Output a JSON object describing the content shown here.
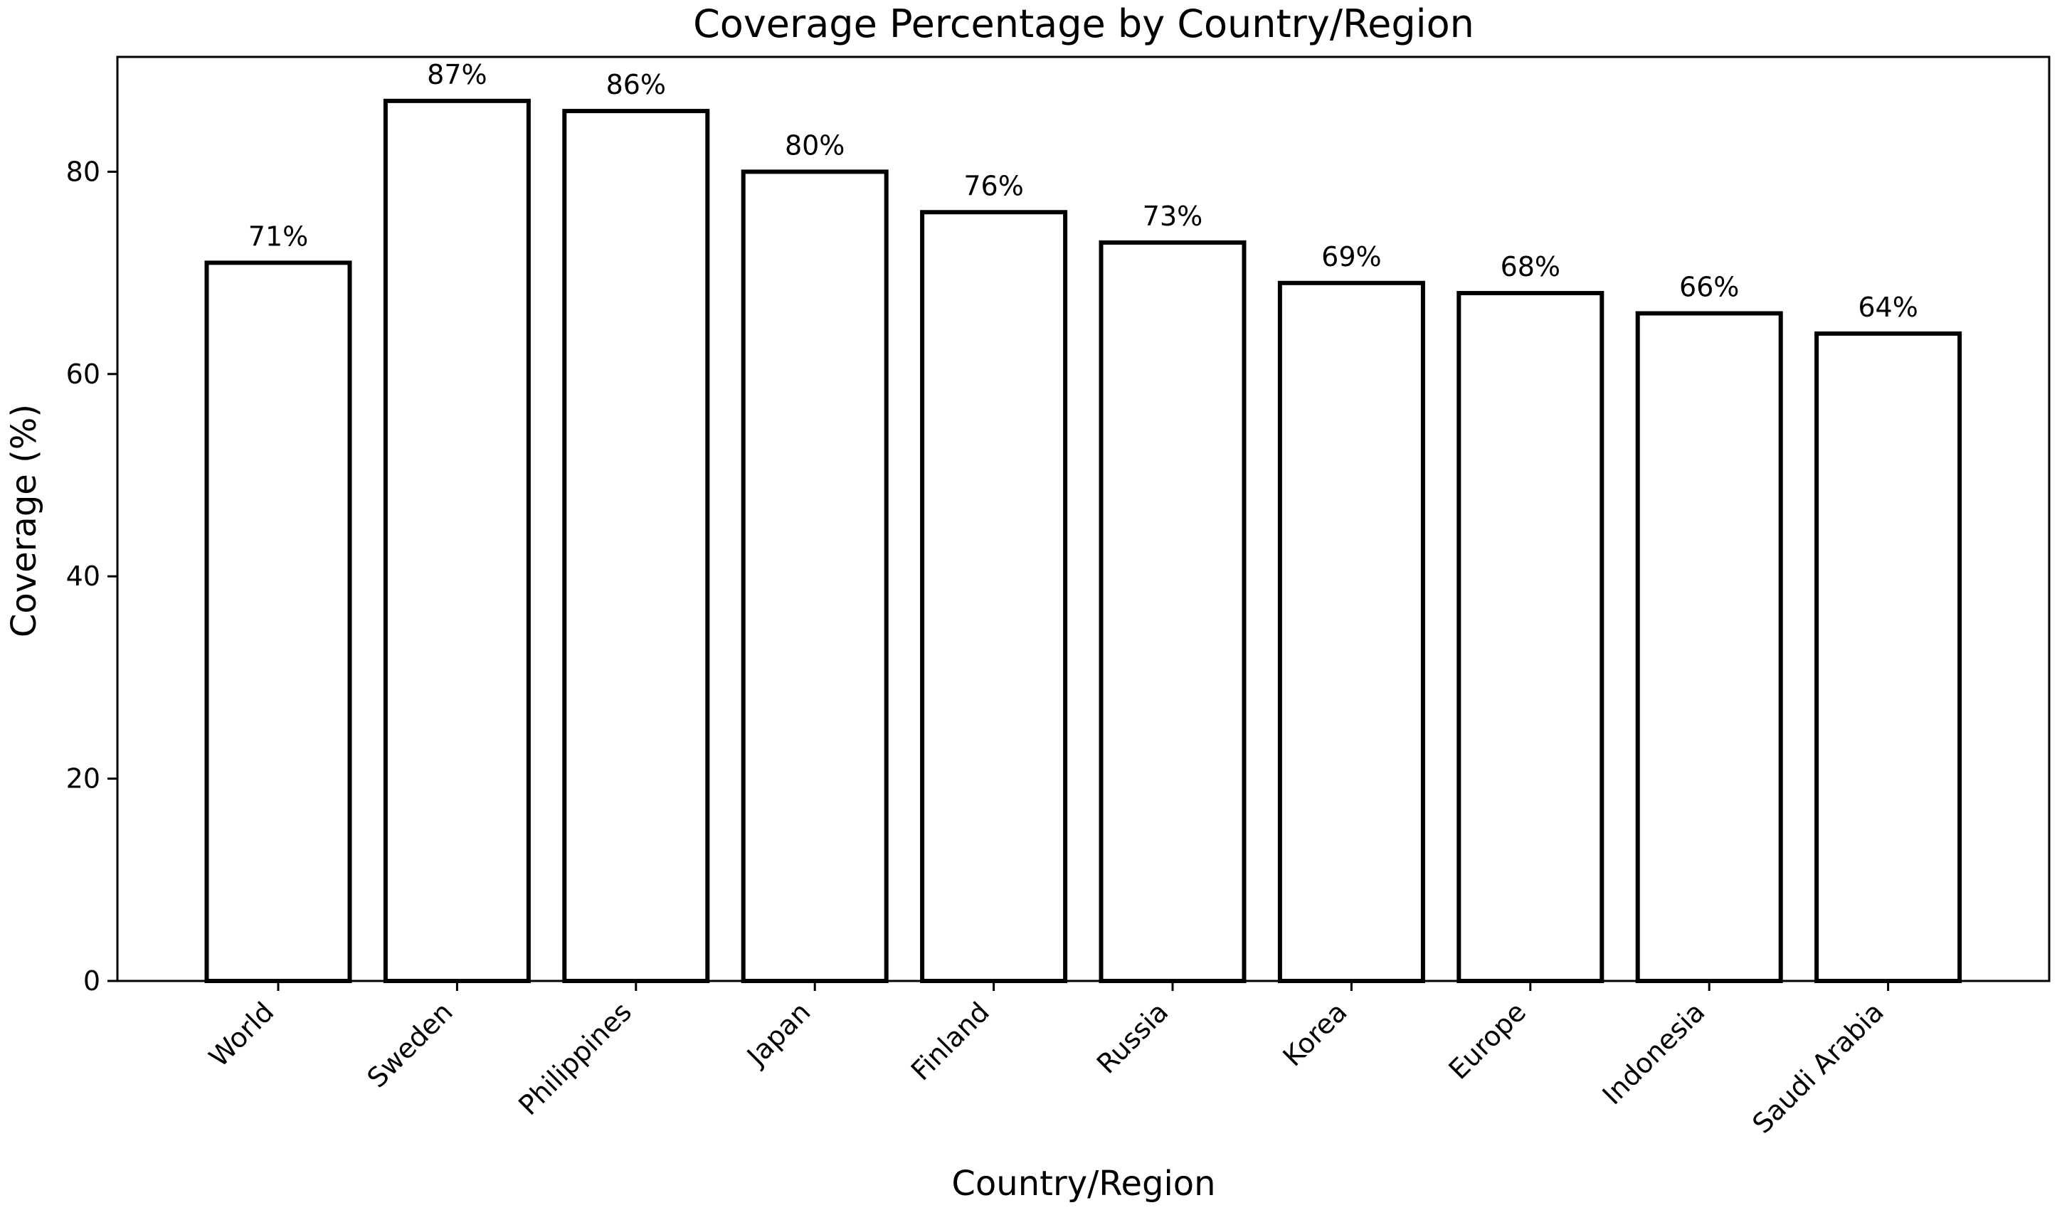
{
  "chart_data": {
    "type": "bar",
    "title": "Coverage Percentage by Country/Region",
    "xlabel": "Country/Region",
    "ylabel": "Coverage (%)",
    "categories": [
      "World",
      "Sweden",
      "Philippines",
      "Japan",
      "Finland",
      "Russia",
      "Korea",
      "Europe",
      "Indonesia",
      "Saudi Arabia"
    ],
    "values": [
      71,
      87,
      86,
      80,
      76,
      73,
      69,
      68,
      66,
      64
    ],
    "data_labels": [
      "71%",
      "87%",
      "86%",
      "80%",
      "76%",
      "73%",
      "69%",
      "68%",
      "66%",
      "64%"
    ],
    "ylim": [
      0,
      91.35
    ],
    "yticks": [
      0,
      20,
      40,
      60,
      80
    ],
    "ytick_labels": [
      "0",
      "20",
      "40",
      "60",
      "80"
    ],
    "grid": false,
    "legend": "none",
    "bar_fill": "#ffffff",
    "bar_edge": "#000000"
  }
}
